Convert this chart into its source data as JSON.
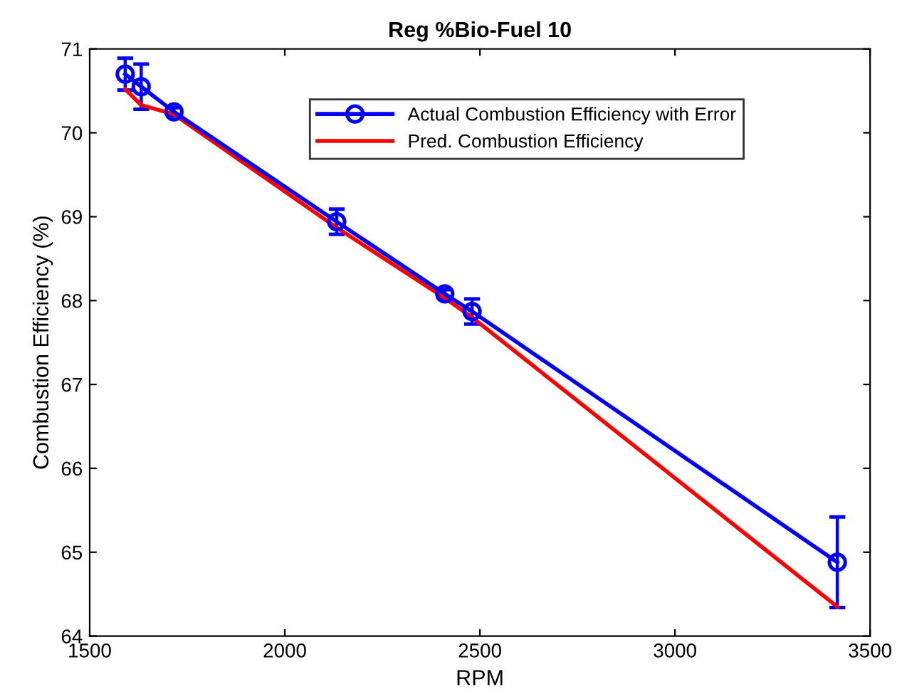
{
  "chart_data": {
    "type": "line",
    "title": "Reg %Bio-Fuel 10",
    "xlabel": "RPM",
    "ylabel": "Combustion Efficiency (%)",
    "x": [
      1591,
      1632,
      1716,
      2133,
      2410,
      2480,
      3416
    ],
    "series": [
      {
        "name": "Actual Combustion Efficiency with Error",
        "color": "#0000ff",
        "values": [
          70.7,
          70.55,
          70.25,
          68.94,
          68.08,
          67.87,
          64.88
        ],
        "errors": [
          0.19,
          0.27,
          0.05,
          0.15,
          0.05,
          0.15,
          0.54
        ],
        "marker": "circle"
      },
      {
        "name": "Pred. Combustion Efficiency",
        "color": "#ff0000",
        "values": [
          70.52,
          70.33,
          70.22,
          68.87,
          68.03,
          67.8,
          64.35
        ],
        "marker": "none"
      }
    ],
    "xlim": [
      1500,
      3500
    ],
    "xticks": [
      1500,
      2000,
      2500,
      3000,
      3500
    ],
    "ylim": [
      64,
      71
    ],
    "yticks": [
      64,
      65,
      66,
      67,
      68,
      69,
      70,
      71
    ],
    "grid": false,
    "legend": "top right",
    "line_style": "solid"
  }
}
